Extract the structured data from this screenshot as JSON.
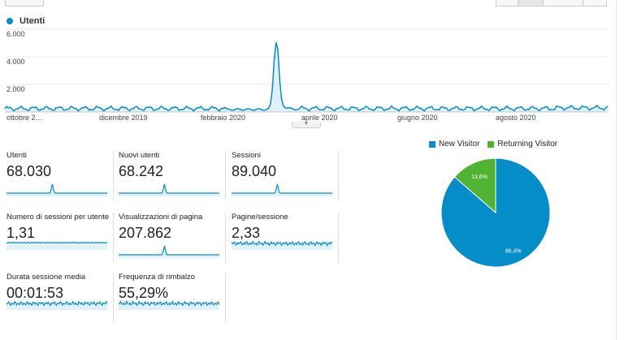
{
  "main_chart": {
    "legend_label": "Utenti",
    "y_ticks": [
      "6.000",
      "4.000",
      "2.000"
    ],
    "x_ticks": [
      "ottobre 2…",
      "dicembre 2019",
      "febbraio 2020",
      "aprile 2020",
      "giugno 2020",
      "agosto 2020"
    ],
    "series_color": "#058dc7"
  },
  "metrics": [
    {
      "label": "Utenti",
      "value": "68.030"
    },
    {
      "label": "Nuovi utenti",
      "value": "68.242"
    },
    {
      "label": "Sessioni",
      "value": "89.040"
    },
    {
      "label": "Numero di sessioni per utente",
      "value": "1,31"
    },
    {
      "label": "Visualizzazioni di pagina",
      "value": "207.862"
    },
    {
      "label": "Pagine/sessione",
      "value": "2,33"
    },
    {
      "label": "Durata sessione media",
      "value": "00:01:53"
    },
    {
      "label": "Frequenza di rimbalzo",
      "value": "55,29%"
    }
  ],
  "pie": {
    "legend": [
      {
        "label": "New Visitor",
        "color": "#058dc7"
      },
      {
        "label": "Returning Visitor",
        "color": "#50b432"
      }
    ],
    "slices": [
      {
        "label": "86,4%",
        "value": 86.4,
        "color": "#058dc7"
      },
      {
        "label": "13,6%",
        "value": 13.6,
        "color": "#50b432"
      }
    ]
  }
}
